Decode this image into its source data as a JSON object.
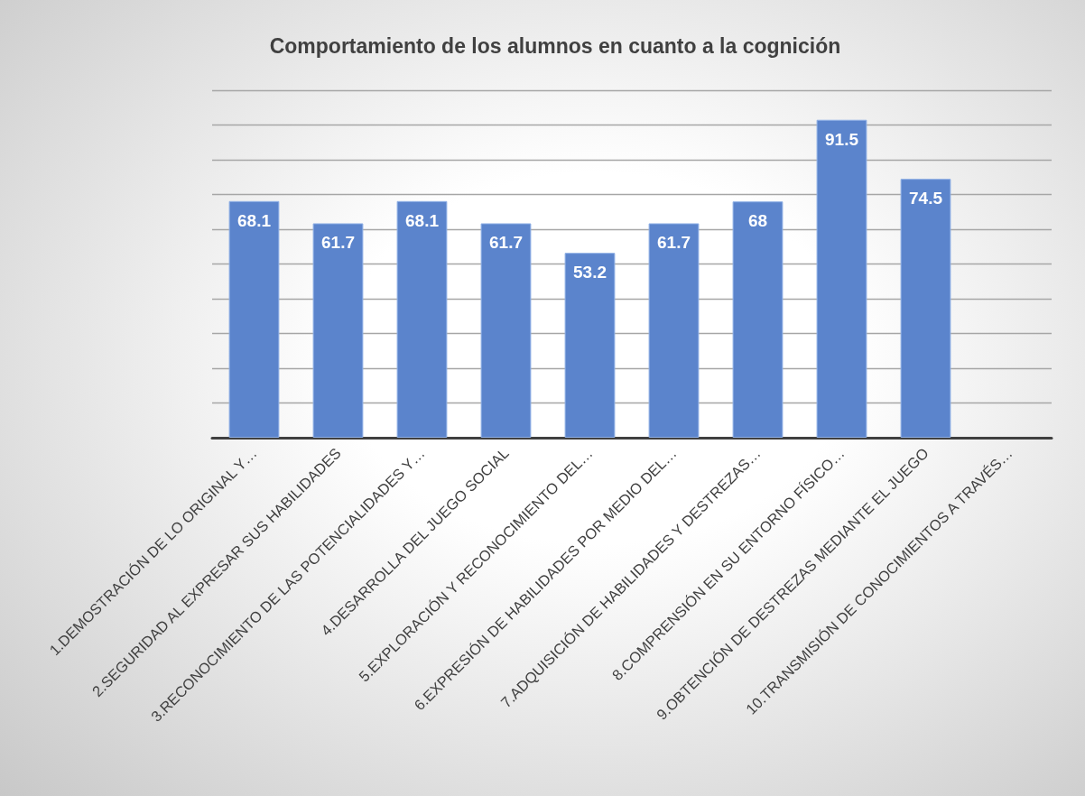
{
  "chart_data": {
    "type": "bar",
    "title": "Comportamiento de los alumnos en cuanto a la cognición",
    "categories": [
      "1.DEMOSTRACIÓN DE LO ORIGINAL Y…",
      "2.SEGURIDAD AL EXPRESAR SUS HABILIDADES",
      "3.RECONOCIMIENTO DE LAS POTENCIALIDADES Y…",
      "4.DESARROLLA DEL JUEGO SOCIAL",
      "5.EXPLORACIÓN Y RECONOCIMIENTO DEL…",
      "6.EXPRESIÓN DE HABILIDADES POR MEDIO DEL…",
      "7.ADQUISICIÓN DE HABILIDADES Y DESTREZAS…",
      "8.COMPRENSIÓN EN SU ENTORNO FÍSICO…",
      "9.OBTENCIÓN DE DESTREZAS MEDIANTE EL JUEGO",
      "10.TRANSMISIÓN DE CONOCIMIENTOS A TRAVÉS…"
    ],
    "values": [
      68.1,
      61.7,
      68.1,
      61.7,
      53.2,
      61.7,
      68,
      91.5,
      74.5,
      null
    ],
    "color": "#5b84cc",
    "data_labels": true,
    "grid": "y",
    "tick_labels": "x",
    "ylim": [
      0,
      100
    ],
    "yticks": [
      {
        "value": 0,
        "label": null
      },
      {
        "value": 10,
        "label": null
      },
      {
        "value": 20,
        "label": null
      },
      {
        "value": 30,
        "label": null
      },
      {
        "value": 40,
        "label": null
      },
      {
        "value": 50,
        "label": null
      },
      {
        "value": 60,
        "label": null
      },
      {
        "value": 70,
        "label": null
      },
      {
        "value": 80,
        "label": null
      },
      {
        "value": 90,
        "label": null
      },
      {
        "value": 100,
        "label": null
      }
    ]
  }
}
